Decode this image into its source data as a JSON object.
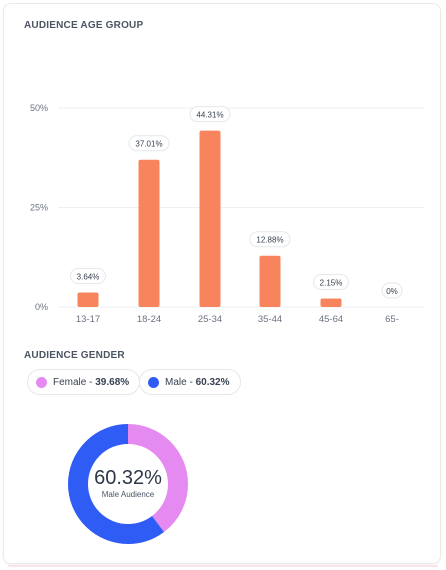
{
  "age": {
    "title": "AUDIENCE AGE GROUP"
  },
  "gender": {
    "title": "AUDIENCE GENDER",
    "female_label": "Female",
    "female_value": "39.68%",
    "male_label": "Male",
    "male_value": "60.32%",
    "center_value": "60.32%",
    "center_label": "Male Audience"
  },
  "colors": {
    "bar": "#f7845c",
    "female": "#e58af0",
    "male": "#2f5cf5",
    "grid": "#eceff3"
  },
  "chart_data": [
    {
      "type": "bar",
      "title": "AUDIENCE AGE GROUP",
      "categories": [
        "13-17",
        "18-24",
        "25-34",
        "35-44",
        "45-64",
        "65-"
      ],
      "values": [
        3.64,
        37.01,
        44.31,
        12.88,
        2.15,
        0
      ],
      "value_labels": [
        "3.64%",
        "37.01%",
        "44.31%",
        "12.88%",
        "2.15%",
        "0%"
      ],
      "yticks": [
        "0%",
        "25%",
        "50%"
      ],
      "ylim": [
        0,
        50
      ],
      "grid": true
    },
    {
      "type": "pie",
      "title": "AUDIENCE GENDER",
      "categories": [
        "Female",
        "Male"
      ],
      "values": [
        39.68,
        60.32
      ]
    }
  ]
}
